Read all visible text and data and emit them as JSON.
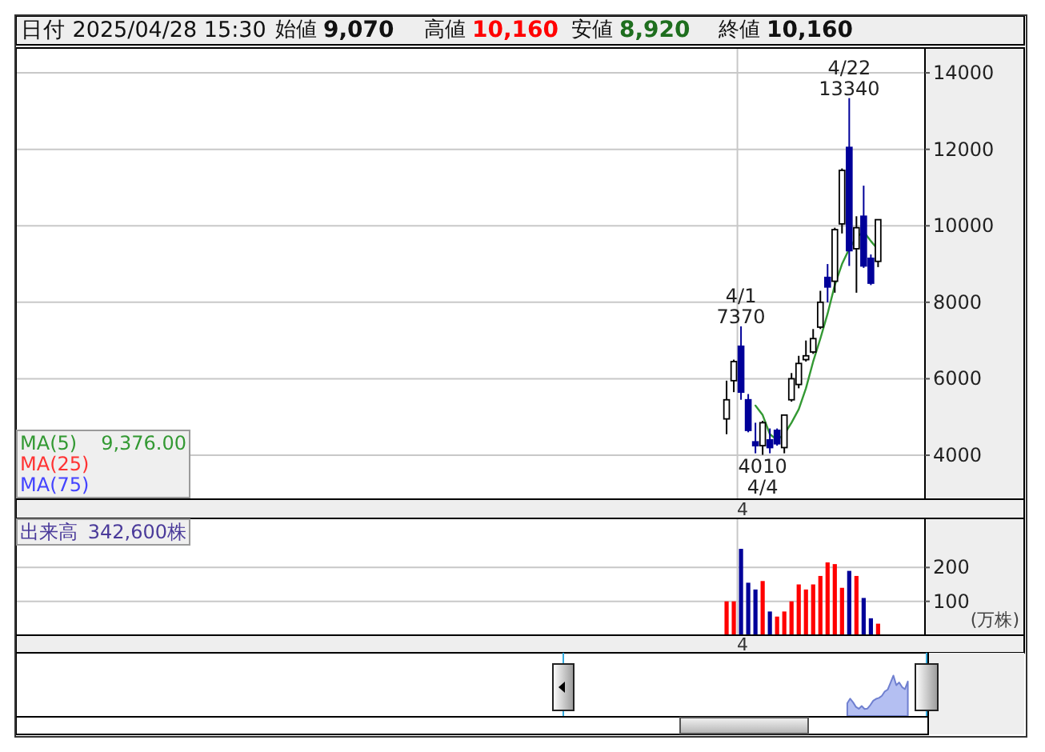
{
  "chart_data": [
    {
      "type": "candlestick",
      "categories": [
        null,
        null,
        "4",
        null,
        null,
        null,
        null,
        null,
        null,
        null,
        null,
        null,
        null,
        null,
        null,
        null,
        null,
        null,
        null,
        null,
        null,
        null
      ],
      "ohlc": [
        [
          4950,
          5950,
          4550,
          5450
        ],
        [
          5950,
          6500,
          5650,
          6450
        ],
        [
          6850,
          7370,
          5450,
          5650
        ],
        [
          5450,
          5600,
          4600,
          4650
        ],
        [
          4350,
          4850,
          4050,
          4250
        ],
        [
          4250,
          4900,
          4010,
          4850
        ],
        [
          4400,
          4700,
          4050,
          4200
        ],
        [
          4650,
          4700,
          4250,
          4300
        ],
        [
          4200,
          5050,
          4050,
          5050
        ],
        [
          5450,
          6150,
          5400,
          6000
        ],
        [
          5850,
          6600,
          5750,
          6400
        ],
        [
          6500,
          7000,
          6450,
          6600
        ],
        [
          6700,
          7300,
          6650,
          7050
        ],
        [
          7350,
          8300,
          7300,
          8000
        ],
        [
          8650,
          9000,
          8000,
          8400
        ],
        [
          8550,
          9950,
          8250,
          9900
        ],
        [
          10050,
          11500,
          9800,
          11450
        ],
        [
          12050,
          13340,
          8950,
          9350
        ],
        [
          9400,
          10250,
          8250,
          9950
        ],
        [
          10250,
          11050,
          8900,
          8950
        ],
        [
          9150,
          9250,
          8450,
          8500
        ],
        [
          9070,
          10160,
          8920,
          10160
        ]
      ],
      "colors": [
        "#ffffff",
        "#ffffff",
        "#000099",
        "#000099",
        "#000099",
        "#ffffff",
        "#000099",
        "#000099",
        "#ffffff",
        "#ffffff",
        "#ffffff",
        "#ffffff",
        "#ffffff",
        "#ffffff",
        "#000099",
        "#ffffff",
        "#ffffff",
        "#000099",
        "#ffffff",
        "#000099",
        "#000099",
        "#ffffff"
      ],
      "series": [
        {
          "type": "line",
          "name": "MA(5)",
          "color": "#339933",
          "values": [
            null,
            null,
            null,
            null,
            5300,
            5050,
            4550,
            4400,
            4550,
            4850,
            5200,
            5750,
            6450,
            7050,
            7700,
            8450,
            9000,
            9400,
            9700,
            9850,
            9600,
            9376
          ]
        },
        {
          "type": "line",
          "name": "MA(25)",
          "color": "#ff3333",
          "values": [
            null,
            null,
            null,
            null,
            null,
            null,
            null,
            null,
            null,
            null,
            null,
            null,
            null,
            null,
            null,
            null,
            null,
            null,
            null,
            null,
            null,
            null
          ]
        },
        {
          "type": "line",
          "name": "MA(75)",
          "color": "#4444ff",
          "values": [
            null,
            null,
            null,
            null,
            null,
            null,
            null,
            null,
            null,
            null,
            null,
            null,
            null,
            null,
            null,
            null,
            null,
            null,
            null,
            null,
            null,
            null
          ]
        }
      ],
      "ylim": [
        2850,
        14650
      ],
      "yticks": [
        4000,
        6000,
        8000,
        10000,
        12000,
        14000
      ],
      "grid": true,
      "legend": "bottom left",
      "annotations": [
        {
          "text": "7370",
          "y": 7370
        },
        {
          "text": "4/1",
          "y": 7370
        },
        {
          "text": "4010",
          "y": 4010
        },
        {
          "text": "4/4",
          "y": 4010
        },
        {
          "text": "13340",
          "y": 13340
        },
        {
          "text": "4/22",
          "y": 13340
        },
        "日付 2025/04/28 15:30",
        "始値",
        "9,070",
        "高値",
        "10,160",
        "安値",
        "8,920",
        "終値",
        "10,160",
        "9,376.00"
      ]
    },
    {
      "type": "bar",
      "categories": [
        null,
        null,
        "4",
        null,
        null,
        null,
        null,
        null,
        null,
        null,
        null,
        null,
        null,
        null,
        null,
        null,
        null,
        null,
        null,
        null,
        null,
        null
      ],
      "series": [
        {
          "name": "出来高",
          "colors": [
            "#ff0000",
            "#ff0000",
            "#000099",
            "#000099",
            "#000099",
            "#ff0000",
            "#000099",
            "#ff0000",
            "#ff0000",
            "#ff0000",
            "#ff0000",
            "#ff0000",
            "#ff0000",
            "#ff0000",
            "#ff0000",
            "#ff0000",
            "#ff0000",
            "#000099",
            "#ff0000",
            "#000099",
            "#000099",
            "#ff0000"
          ],
          "values": [
            100,
            100,
            255,
            155,
            135,
            160,
            70,
            55,
            70,
            100,
            150,
            135,
            150,
            175,
            215,
            210,
            140,
            190,
            175,
            110,
            50,
            34
          ]
        }
      ],
      "ylabel": "(万株)",
      "ylim": [
        0,
        345
      ],
      "yticks": [
        100,
        200
      ],
      "grid": true,
      "legend": "top left",
      "annotations": [
        "342,600株"
      ]
    }
  ]
}
